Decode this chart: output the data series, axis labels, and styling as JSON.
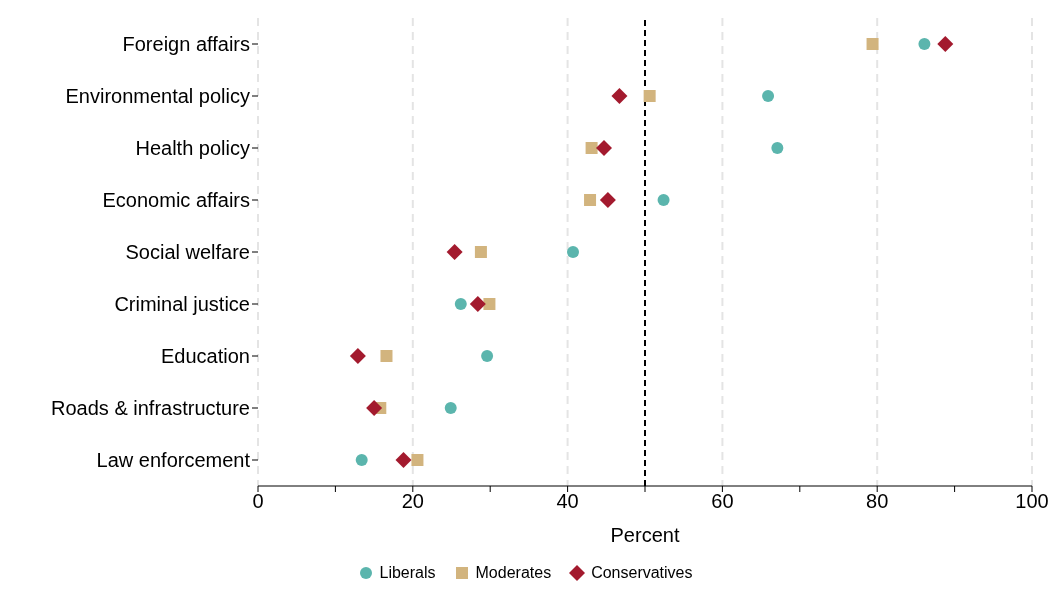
{
  "chart_data": {
    "type": "scatter",
    "xlabel": "Percent",
    "categories": [
      "Foreign affairs",
      "Environmental policy",
      "Health policy",
      "Economic affairs",
      "Social welfare",
      "Criminal justice",
      "Education",
      "Roads & infrastructure",
      "Law enforcement"
    ],
    "series": [
      {
        "name": "Liberals",
        "color": "#5bb5ad",
        "marker": "circle",
        "values": [
          86.1,
          65.9,
          67.1,
          52.4,
          40.7,
          26.2,
          29.6,
          24.9,
          13.4
        ]
      },
      {
        "name": "Moderates",
        "color": "#d2b47e",
        "marker": "square",
        "values": [
          79.4,
          50.6,
          43.1,
          42.9,
          28.8,
          29.9,
          16.6,
          15.8,
          20.6
        ]
      },
      {
        "name": "Conservatives",
        "color": "#a31a2e",
        "marker": "diamond",
        "values": [
          88.8,
          46.7,
          44.7,
          45.2,
          25.4,
          28.4,
          12.9,
          15.0,
          18.8
        ]
      }
    ],
    "orientation": "horizontal",
    "xlim": [
      0,
      100
    ],
    "xticks": [
      0,
      {
        "value": 10,
        "label": null
      },
      20,
      {
        "value": 30,
        "label": null
      },
      40,
      {
        "value": 50,
        "label": null
      },
      60,
      {
        "value": 70,
        "label": null
      },
      80,
      {
        "value": 90,
        "label": null
      },
      100
    ],
    "ref_lines": [
      {
        "axis": "x",
        "value": 50,
        "color": "#000000",
        "line_style": "dashed"
      }
    ],
    "grid": "x",
    "legend": "bottom"
  }
}
